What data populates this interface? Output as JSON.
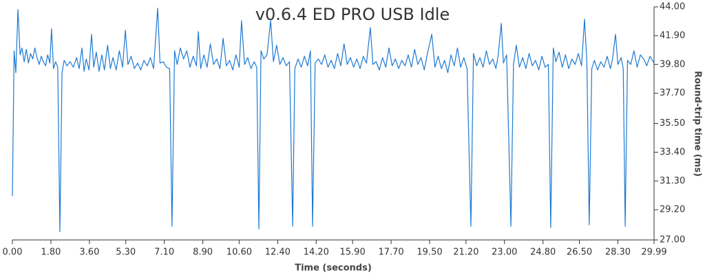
{
  "chart_data": {
    "type": "line",
    "title": "v0.6.4 ED PRO USB Idle",
    "x_label": "Time (seconds)",
    "y_label": "Round-trip time (ms)",
    "color": "#1a78d2",
    "y_axis_side": "right",
    "xlim": [
      0,
      29.99
    ],
    "ylim": [
      27,
      44
    ],
    "xticks": [
      {
        "value": 0,
        "label": "0.00"
      },
      {
        "value": 1.8,
        "label": "1.80"
      },
      {
        "value": 3.6,
        "label": "3.60"
      },
      {
        "value": 5.3,
        "label": "5.30"
      },
      {
        "value": 7.1,
        "label": "7.10"
      },
      {
        "value": 8.9,
        "label": "8.90"
      },
      {
        "value": 10.6,
        "label": "10.60"
      },
      {
        "value": 12.4,
        "label": "12.40"
      },
      {
        "value": 14.2,
        "label": "14.20"
      },
      {
        "value": 15.9,
        "label": "15.90"
      },
      {
        "value": 17.7,
        "label": "17.70"
      },
      {
        "value": 19.5,
        "label": "19.50"
      },
      {
        "value": 21.2,
        "label": "21.20"
      },
      {
        "value": 23,
        "label": "23.00"
      },
      {
        "value": 24.8,
        "label": "24.80"
      },
      {
        "value": 26.5,
        "label": "26.50"
      },
      {
        "value": 28.3,
        "label": "28.30"
      },
      {
        "value": 29.99,
        "label": "29.99"
      }
    ],
    "yticks": [
      {
        "value": 27,
        "label": "27.00"
      },
      {
        "value": 29.2,
        "label": "29.20"
      },
      {
        "value": 31.3,
        "label": "31.30"
      },
      {
        "value": 33.4,
        "label": "33.40"
      },
      {
        "value": 35.5,
        "label": "35.50"
      },
      {
        "value": 37.7,
        "label": "37.70"
      },
      {
        "value": 39.8,
        "label": "39.80"
      },
      {
        "value": 41.9,
        "label": "41.90"
      },
      {
        "value": 44,
        "label": "44.00"
      }
    ],
    "x": [
      0,
      0.08,
      0.16,
      0.26,
      0.36,
      0.45,
      0.55,
      0.65,
      0.75,
      0.85,
      0.95,
      1.05,
      1.15,
      1.25,
      1.35,
      1.45,
      1.55,
      1.65,
      1.75,
      1.83,
      1.92,
      2.02,
      2.12,
      2.22,
      2.32,
      2.42,
      2.55,
      2.7,
      2.85,
      3,
      3.12,
      3.25,
      3.35,
      3.45,
      3.58,
      3.7,
      3.8,
      3.92,
      4.05,
      4.18,
      4.3,
      4.45,
      4.58,
      4.7,
      4.85,
      5,
      5.15,
      5.28,
      5.4,
      5.55,
      5.7,
      5.85,
      6,
      6.15,
      6.3,
      6.45,
      6.6,
      6.79,
      6.9,
      7.05,
      7.2,
      7.35,
      7.46,
      7.58,
      7.7,
      7.85,
      8,
      8.15,
      8.3,
      8.45,
      8.6,
      8.69,
      8.8,
      8.95,
      9.1,
      9.25,
      9.4,
      9.55,
      9.7,
      9.85,
      10,
      10.15,
      10.3,
      10.45,
      10.6,
      10.71,
      10.85,
      11,
      11.15,
      11.3,
      11.42,
      11.52,
      11.62,
      11.75,
      11.9,
      12.07,
      12.2,
      12.35,
      12.5,
      12.65,
      12.8,
      12.95,
      13.1,
      13.2,
      13.35,
      13.5,
      13.65,
      13.8,
      13.93,
      14.03,
      14.15,
      14.3,
      14.45,
      14.6,
      14.75,
      14.9,
      15.05,
      15.2,
      15.35,
      15.5,
      15.65,
      15.8,
      15.95,
      16.1,
      16.25,
      16.4,
      16.55,
      16.73,
      16.85,
      17,
      17.15,
      17.3,
      17.45,
      17.6,
      17.75,
      17.9,
      18.05,
      18.2,
      18.35,
      18.5,
      18.65,
      18.8,
      18.95,
      19.1,
      19.25,
      19.4,
      19.6,
      19.75,
      19.9,
      20.05,
      20.2,
      20.35,
      20.5,
      20.65,
      20.8,
      20.95,
      21.1,
      21.25,
      21.43,
      21.55,
      21.7,
      21.85,
      22,
      22.15,
      22.3,
      22.45,
      22.6,
      22.7,
      22.85,
      22.95,
      23.1,
      23.3,
      23.42,
      23.55,
      23.7,
      23.85,
      24,
      24.15,
      24.3,
      24.45,
      24.6,
      24.75,
      24.9,
      25.05,
      25.16,
      25.28,
      25.4,
      25.55,
      25.7,
      25.85,
      26,
      26.15,
      26.3,
      26.45,
      26.6,
      26.74,
      26.85,
      26.96,
      27.08,
      27.2,
      27.35,
      27.5,
      27.65,
      27.8,
      27.95,
      28.05,
      28.19,
      28.3,
      28.45,
      28.55,
      28.64,
      28.75,
      28.9,
      29.05,
      29.2,
      29.35,
      29.5,
      29.65,
      29.8,
      29.99
    ],
    "values": [
      30.2,
      40.8,
      39.2,
      43.8,
      40.5,
      41,
      40,
      40.9,
      39.9,
      40.6,
      40.2,
      41,
      40.3,
      39.8,
      40.4,
      40,
      39.7,
      40.5,
      39.9,
      42.4,
      39.5,
      40,
      39.6,
      27.6,
      39.2,
      40.1,
      39.7,
      40,
      39.6,
      40.3,
      39.5,
      41,
      39.3,
      40.2,
      39.4,
      42,
      39.6,
      40.7,
      39.3,
      40.5,
      39.4,
      41.2,
      39.5,
      40.3,
      39.4,
      40.8,
      39.6,
      42.3,
      39.8,
      40.4,
      39.5,
      39.9,
      39.4,
      40.1,
      39.7,
      40.3,
      39.5,
      43.9,
      39.9,
      40,
      39.6,
      39.5,
      28,
      40.8,
      39.8,
      41,
      40.2,
      40.8,
      39.6,
      40.4,
      39.7,
      42.2,
      39.5,
      40.5,
      39.6,
      41.3,
      39.8,
      40.2,
      39.5,
      41.7,
      39.7,
      40.1,
      39.4,
      40.5,
      39.6,
      43,
      39.8,
      40.3,
      39.5,
      40,
      39.6,
      27.8,
      40.8,
      40.2,
      40.5,
      43,
      40,
      41.2,
      39.8,
      40.3,
      39.7,
      40,
      28,
      39.5,
      40.2,
      39.6,
      40.4,
      39.7,
      40.8,
      28,
      39.9,
      40.2,
      39.8,
      40.5,
      39.6,
      40.1,
      39.5,
      40.6,
      39.7,
      41.3,
      39.8,
      40.3,
      39.6,
      40.2,
      39.5,
      40.4,
      39.9,
      42.5,
      39.8,
      40,
      39.4,
      40.3,
      39.6,
      41,
      39.7,
      40.2,
      39.5,
      40.1,
      39.7,
      40.5,
      39.6,
      40.9,
      39.8,
      40.3,
      39.4,
      40.6,
      42,
      39.6,
      40.4,
      39.5,
      40.1,
      39.2,
      40.5,
      39.7,
      41,
      39.6,
      40.3,
      39.5,
      28,
      40.6,
      39.7,
      40.3,
      39.6,
      40.8,
      39.8,
      40.2,
      39.5,
      40.4,
      42.8,
      39.9,
      40.5,
      28,
      39.8,
      41.2,
      39.6,
      40.3,
      39.5,
      40.6,
      39.7,
      40.1,
      39.4,
      40.4,
      39.6,
      39.8,
      27.9,
      41,
      40,
      40.7,
      39.6,
      40.5,
      39.5,
      40.2,
      39.8,
      40.6,
      39.7,
      43.1,
      40,
      28.1,
      39.5,
      40.1,
      39.4,
      40,
      39.6,
      40.4,
      39.5,
      40.2,
      42,
      39.8,
      40.3,
      39.5,
      28,
      40.1,
      39.8,
      40.8,
      39.6,
      40.5,
      40.2,
      39.7,
      40.4,
      39.9
    ]
  }
}
